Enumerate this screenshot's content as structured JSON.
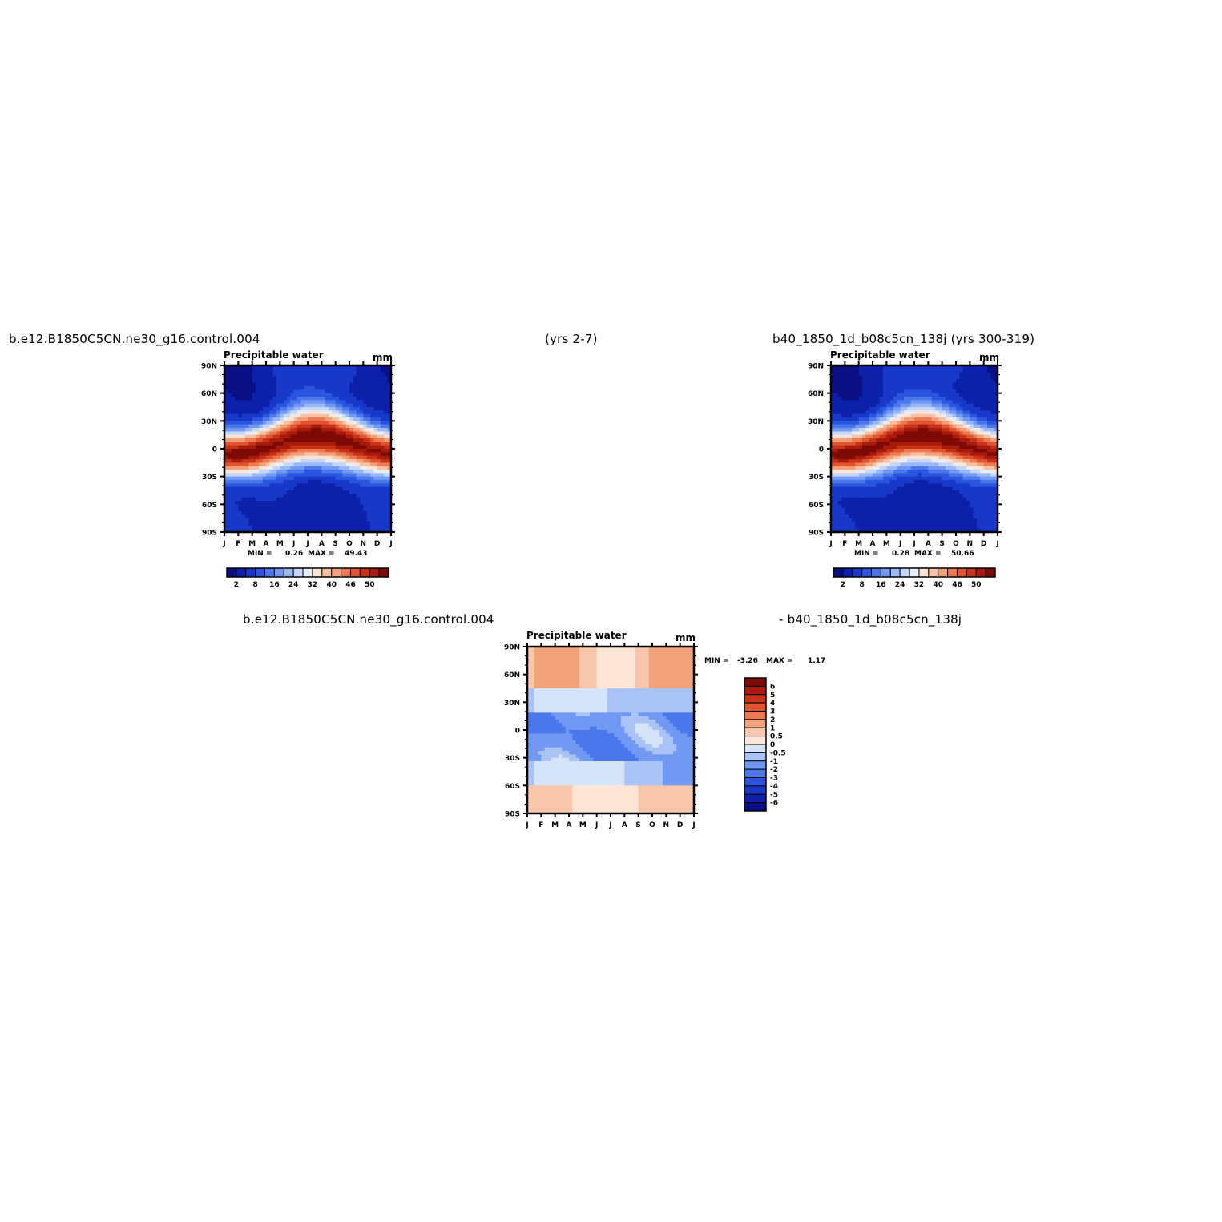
{
  "header": {
    "case1": "b.e12.B1850C5CN.ne30_g16.control.004",
    "case1_years": "(yrs 2-7)",
    "case2": "b40_1850_1d_b08c5cn_138j (yrs 300-319)",
    "diff_left": "b.e12.B1850C5CN.ne30_g16.control.004",
    "diff_right": "- b40_1850_1d_b08c5cn_138j"
  },
  "colors": {
    "abs_scale": [
      "#0a0f84",
      "#0d20aa",
      "#1738c8",
      "#2a55de",
      "#4a78ec",
      "#7198f2",
      "#9bb8f6",
      "#c4d6fa",
      "#e8eef8",
      "#fbe4d4",
      "#f8c2a2",
      "#f39f78",
      "#ee7a52",
      "#e0542f",
      "#c83318",
      "#a71a0c",
      "#7d0a05"
    ],
    "diff_scale": [
      "#0a0f84",
      "#0d20aa",
      "#1738c8",
      "#2a55de",
      "#4a78ec",
      "#7198f2",
      "#a9c3f6",
      "#d6e4fa",
      "#fde6d6",
      "#f8c7ab",
      "#f3a27c",
      "#ee7a52",
      "#e0542f",
      "#c83318",
      "#a71a0c",
      "#7d0a05"
    ]
  },
  "chart_data": [
    {
      "type": "heatmap",
      "title": "Precipitable water",
      "units": "mm",
      "x_ticks": [
        "J",
        "F",
        "M",
        "A",
        "M",
        "J",
        "J",
        "A",
        "S",
        "O",
        "N",
        "D",
        "J"
      ],
      "y_ticks": [
        "90N",
        "60N",
        "30N",
        "0",
        "30S",
        "60S",
        "90S"
      ],
      "stats": {
        "min_label": "MIN =",
        "min": "0.26",
        "max_label": "MAX =",
        "max": "49.43"
      },
      "peak_value": 49.43,
      "colorbar_labels": [
        "2",
        "8",
        "16",
        "24",
        "32",
        "40",
        "46",
        "50"
      ]
    },
    {
      "type": "heatmap",
      "title": "Precipitable water",
      "units": "mm",
      "x_ticks": [
        "J",
        "F",
        "M",
        "A",
        "M",
        "J",
        "J",
        "A",
        "S",
        "O",
        "N",
        "D",
        "J"
      ],
      "y_ticks": [
        "90N",
        "60N",
        "30N",
        "0",
        "30S",
        "60S",
        "90S"
      ],
      "stats": {
        "min_label": "MIN =",
        "min": "0.28",
        "max_label": "MAX =",
        "max": "50.66"
      },
      "peak_value": 50.66,
      "colorbar_labels": [
        "2",
        "8",
        "16",
        "24",
        "32",
        "40",
        "46",
        "50"
      ]
    },
    {
      "type": "heatmap",
      "title": "Precipitable water",
      "units": "mm",
      "x_ticks": [
        "J",
        "F",
        "M",
        "A",
        "M",
        "J",
        "J",
        "A",
        "S",
        "O",
        "N",
        "D",
        "J"
      ],
      "y_ticks": [
        "90N",
        "60N",
        "30N",
        "0",
        "30S",
        "60S",
        "90S"
      ],
      "stats": {
        "min_label": "MIN =",
        "min": "-3.26",
        "max_label": "MAX =",
        "max": "1.17"
      },
      "colorbar_labels": [
        "6",
        "5",
        "4",
        "3",
        "2",
        "1",
        "0.5",
        "0",
        "-0.5",
        "-1",
        "-2",
        "-3",
        "-4",
        "-5",
        "-6"
      ]
    }
  ]
}
